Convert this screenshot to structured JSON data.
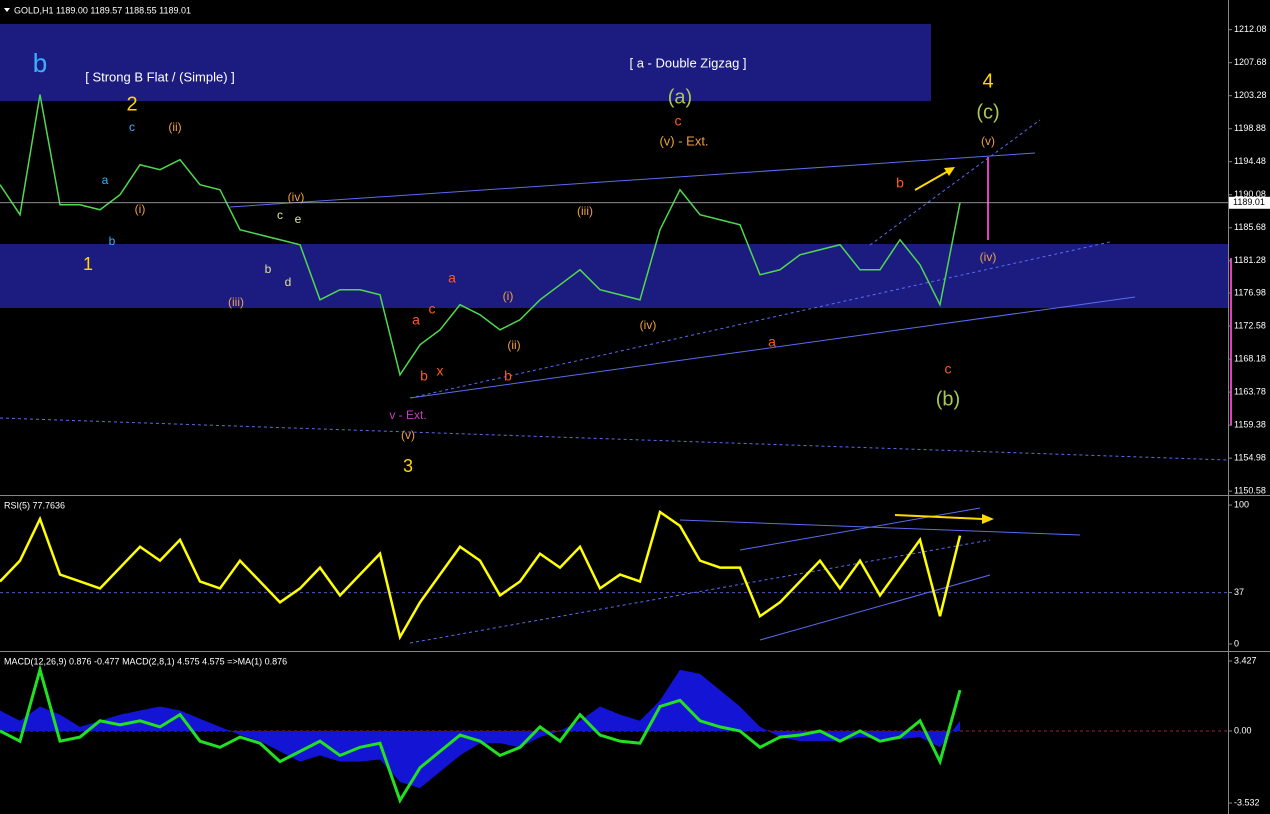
{
  "chart_data": [
    {
      "type": "line",
      "title": "GOLD,H1  1189.00 1189.57 1188.55 1189.01",
      "color": "#4fd84f",
      "values": [
        1191.42,
        1187.42,
        1203.42,
        1188.75,
        1188.75,
        1188.08,
        1190.08,
        1194.08,
        1193.42,
        1194.75,
        1191.42,
        1190.75,
        1185.42,
        1184.75,
        1184.08,
        1183.42,
        1176.08,
        1177.42,
        1177.42,
        1176.75,
        1166.08,
        1170.08,
        1172.08,
        1175.42,
        1174.08,
        1172.08,
        1173.42,
        1176.08,
        1178.08,
        1180.08,
        1177.42,
        1176.75,
        1176.08,
        1185.42,
        1190.75,
        1187.42,
        1186.75,
        1186.08,
        1179.42,
        1180.08,
        1182.08,
        1182.75,
        1183.42,
        1180.08,
        1180.08,
        1184.08,
        1180.75,
        1175.42,
        1189.01
      ],
      "ylim": [
        1150.2,
        1215.5
      ],
      "yticks": [
        1212.08,
        1207.68,
        1203.28,
        1198.88,
        1194.48,
        1190.08,
        1185.68,
        1181.28,
        1176.98,
        1172.58,
        1168.18,
        1163.78,
        1159.38,
        1154.98,
        1150.58
      ],
      "last_price": 1189.01,
      "annotations": [
        "b",
        "[ Strong B Flat / (Simple) ]",
        "[ a - Double Zigzag ]",
        "2",
        "1",
        "3",
        "4",
        "(a)",
        "(b)",
        "(c)",
        "c",
        "(v) - Ext.",
        "v - Ext.",
        "(v)",
        "(iv)",
        "(iii)",
        "(ii)",
        "(i)",
        "(iii)",
        "(iv)",
        "(v)",
        "(iv)",
        "a",
        "c",
        "a",
        "b",
        "x",
        "b",
        "a",
        "c",
        "b",
        "c",
        "a",
        "b",
        "e",
        "d",
        "b",
        "c",
        "(i)",
        "(ii)"
      ]
    },
    {
      "type": "line",
      "title": "RSI(5) 77.7636",
      "color": "#ffff00",
      "values": [
        45,
        60,
        90,
        50,
        45,
        40,
        55,
        70,
        60,
        75,
        45,
        40,
        60,
        45,
        30,
        40,
        55,
        35,
        50,
        65,
        5,
        30,
        50,
        70,
        60,
        35,
        45,
        65,
        55,
        70,
        40,
        50,
        45,
        95,
        85,
        60,
        55,
        55,
        20,
        30,
        45,
        60,
        40,
        60,
        35,
        55,
        75,
        20,
        78
      ],
      "ylim": [
        -4.3,
        105.8
      ],
      "yticks": [
        0,
        37,
        100
      ]
    },
    {
      "type": "macd",
      "title": "MACD(12,26,9) 0.876 -0.477 MACD(2,8,1) 4.575 4.575 =>MA(1) 0.876",
      "series": [
        {
          "color": "#22e022",
          "values": [
            0,
            -0.5,
            3,
            -0.5,
            -0.3,
            0.5,
            0.3,
            0.5,
            0.2,
            0.8,
            -0.5,
            -0.8,
            -0.3,
            -0.6,
            -1.5,
            -1,
            -0.5,
            -1.2,
            -0.8,
            -0.6,
            -3.4,
            -1.8,
            -1,
            -0.2,
            -0.5,
            -1.2,
            -0.8,
            0.2,
            -0.5,
            0.8,
            -0.2,
            -0.5,
            -0.6,
            1.2,
            1.5,
            0.5,
            0.2,
            0,
            -0.8,
            -0.3,
            -0.2,
            0,
            -0.5,
            0,
            -0.5,
            -0.3,
            0.5,
            -1.5,
            2
          ]
        },
        {
          "color": "#1414d4",
          "values": [
            1,
            0.5,
            1.2,
            0.8,
            0.2,
            0.5,
            0.8,
            1,
            1.2,
            1,
            0.6,
            0.2,
            -0.2,
            -0.5,
            -1,
            -1.5,
            -1.2,
            -1.5,
            -1.5,
            -1.4,
            -2.5,
            -2.8,
            -2,
            -1.2,
            -0.6,
            -0.6,
            -0.8,
            -0.3,
            0,
            0.5,
            1.2,
            0.8,
            0.5,
            1.5,
            3,
            2.8,
            2,
            1.2,
            0.2,
            -0.3,
            -0.5,
            -0.5,
            -0.5,
            -0.3,
            -0.4,
            -0.4,
            -0.3,
            -0.8,
            0.5
          ]
        }
      ],
      "ylim": [
        -3.97,
        3.82
      ],
      "yticks": [
        3.427,
        {
          "value": 0,
          "label": "0.00"
        },
        -3.532
      ]
    }
  ]
}
